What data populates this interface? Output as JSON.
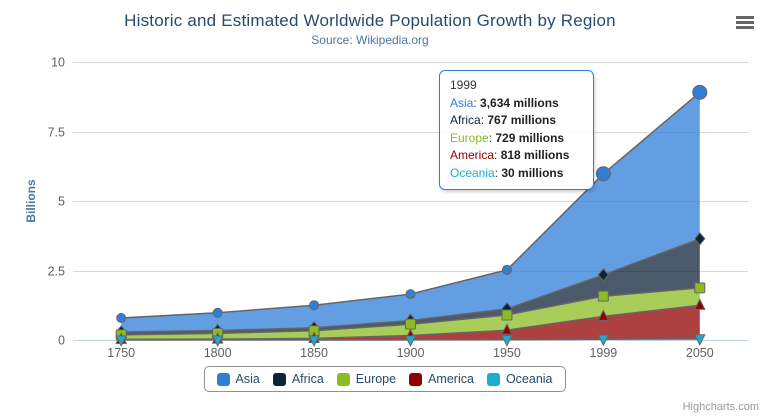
{
  "header": {
    "title": "Historic and Estimated Worldwide Population Growth by Region",
    "subtitle": "Source: Wikipedia.org"
  },
  "chart_data": {
    "type": "area",
    "stacking": "normal",
    "title": "Historic and Estimated Worldwide Population Growth by Region",
    "subtitle": "Source: Wikipedia.org",
    "categories": [
      "1750",
      "1800",
      "1850",
      "1900",
      "1950",
      "1999",
      "2050"
    ],
    "unit": "millions",
    "ylabel": "Billions",
    "xlabel": "",
    "ylim": [
      0,
      10
    ],
    "yticks": [
      0,
      2.5,
      5,
      7.5,
      10
    ],
    "ytick_labels": [
      "0",
      "2.5",
      "5",
      "7.5",
      "10"
    ],
    "grid": true,
    "legend_position": "bottom",
    "stack_order_bottom_to_top": [
      "Oceania",
      "America",
      "Europe",
      "Africa",
      "Asia"
    ],
    "line_color": "#666666",
    "fill_opacity": 0.75,
    "grid_color": "#d8d8d8",
    "axis_line_color": "#c0d0e0",
    "axis_label_color": "#606060",
    "series": [
      {
        "name": "Asia",
        "color": "#2f7ed8",
        "marker": "circle",
        "values": [
          502,
          635,
          809,
          947,
          1402,
          3634,
          5268
        ]
      },
      {
        "name": "Africa",
        "color": "#0d233a",
        "marker": "diamond",
        "values": [
          106,
          107,
          111,
          133,
          221,
          767,
          1766
        ]
      },
      {
        "name": "Europe",
        "color": "#8bbc21",
        "marker": "square",
        "values": [
          163,
          203,
          276,
          408,
          547,
          729,
          628
        ]
      },
      {
        "name": "America",
        "color": "#910000",
        "marker": "triangle-up",
        "values": [
          18,
          31,
          54,
          156,
          339,
          818,
          1201
        ]
      },
      {
        "name": "Oceania",
        "color": "#1aadce",
        "marker": "triangle-down",
        "values": [
          2,
          2,
          2,
          6,
          13,
          30,
          46
        ]
      }
    ]
  },
  "tooltip": {
    "header": "1999",
    "hovered_series": "Asia",
    "hover_index": 5,
    "rows": [
      {
        "name": "Asia",
        "color": "#2f7ed8",
        "value": "3,634 millions"
      },
      {
        "name": "Africa",
        "color": "#0d233a",
        "value": "767 millions"
      },
      {
        "name": "Europe",
        "color": "#8bbc21",
        "value": "729 millions"
      },
      {
        "name": "America",
        "color": "#910000",
        "value": "818 millions"
      },
      {
        "name": "Oceania",
        "color": "#1aadce",
        "value": "30 millions"
      }
    ]
  },
  "legend": {
    "items": [
      {
        "label": "Asia",
        "color": "#2f7ed8"
      },
      {
        "label": "Africa",
        "color": "#0d233a"
      },
      {
        "label": "Europe",
        "color": "#8bbc21"
      },
      {
        "label": "America",
        "color": "#910000"
      },
      {
        "label": "Oceania",
        "color": "#1aadce"
      }
    ]
  },
  "credits": {
    "label": "Highcharts.com"
  }
}
